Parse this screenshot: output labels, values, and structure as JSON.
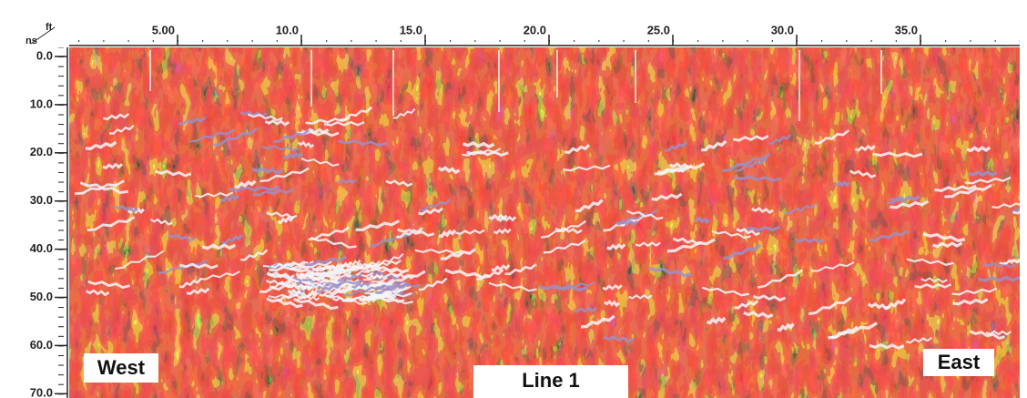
{
  "radargram": {
    "x_axis": {
      "unit": "ft",
      "ticks": [
        {
          "value": 5,
          "label": "5.00"
        },
        {
          "value": 10,
          "label": "10.0"
        },
        {
          "value": 15,
          "label": "15.0"
        },
        {
          "value": 20,
          "label": "20.0"
        },
        {
          "value": 25,
          "label": "25.0"
        },
        {
          "value": 30,
          "label": "30.0"
        },
        {
          "value": 35,
          "label": "35.0"
        }
      ]
    },
    "y_axis": {
      "unit": "ns",
      "ticks": [
        {
          "value": 0,
          "label": "0.0"
        },
        {
          "value": 10,
          "label": "10.0"
        },
        {
          "value": 20,
          "label": "20.0"
        },
        {
          "value": 30,
          "label": "30.0"
        },
        {
          "value": 40,
          "label": "40.0"
        },
        {
          "value": 50,
          "label": "50.0"
        },
        {
          "value": 60,
          "label": "60.0"
        },
        {
          "value": 70,
          "label": "70.0"
        }
      ]
    },
    "labels": {
      "west": "West",
      "east": "East",
      "line": "Line 1"
    }
  }
}
